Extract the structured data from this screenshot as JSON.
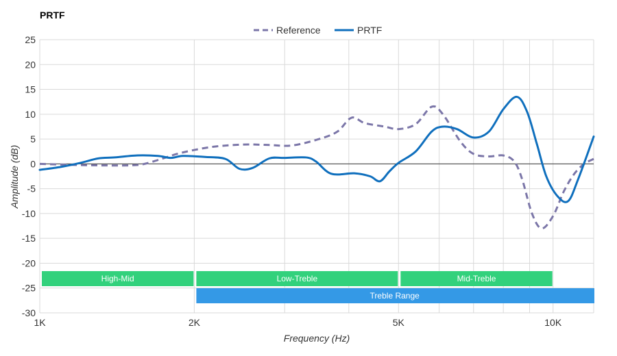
{
  "chart_data": {
    "type": "line",
    "title": "PRTF",
    "xlabel": "Frequency (Hz)",
    "ylabel": "Amplitude (dB)",
    "x_scale": "log",
    "xlim": [
      1000,
      12000
    ],
    "ylim": [
      -30,
      25
    ],
    "y_ticks": [
      25,
      20,
      15,
      10,
      5,
      0,
      -5,
      -10,
      -15,
      -20,
      -25,
      -30
    ],
    "x_tick_labels": [
      {
        "value": 1000,
        "label": "1K"
      },
      {
        "value": 2000,
        "label": "2K"
      },
      {
        "value": 5000,
        "label": "5K"
      },
      {
        "value": 10000,
        "label": "10K"
      }
    ],
    "x_gridlines": [
      1000,
      2000,
      3000,
      4000,
      5000,
      6000,
      7000,
      8000,
      9000,
      10000,
      12000
    ],
    "grid": true,
    "legend_position": "top-center",
    "series": [
      {
        "name": "Reference",
        "color": "#7b76a8",
        "style": "dashed",
        "points": [
          [
            1000,
            0
          ],
          [
            1150,
            -0.2
          ],
          [
            1300,
            -0.3
          ],
          [
            1500,
            -0.3
          ],
          [
            1600,
            0
          ],
          [
            1750,
            1.2
          ],
          [
            1850,
            2.0
          ],
          [
            2000,
            2.8
          ],
          [
            2200,
            3.5
          ],
          [
            2500,
            3.9
          ],
          [
            2800,
            3.8
          ],
          [
            3100,
            3.7
          ],
          [
            3500,
            5.0
          ],
          [
            3800,
            6.5
          ],
          [
            4050,
            9.3
          ],
          [
            4300,
            8.2
          ],
          [
            4700,
            7.5
          ],
          [
            5000,
            7.0
          ],
          [
            5400,
            8.0
          ],
          [
            5800,
            11.5
          ],
          [
            6100,
            10.0
          ],
          [
            6600,
            4.5
          ],
          [
            7000,
            2.0
          ],
          [
            7500,
            1.5
          ],
          [
            8000,
            1.7
          ],
          [
            8400,
            0.5
          ],
          [
            8700,
            -3.0
          ],
          [
            9100,
            -10.0
          ],
          [
            9500,
            -13.0
          ],
          [
            10000,
            -10.5
          ],
          [
            10500,
            -5.5
          ],
          [
            11000,
            -2.0
          ],
          [
            11500,
            0
          ],
          [
            12000,
            1.0
          ]
        ]
      },
      {
        "name": "PRTF",
        "color": "#0f6fbd",
        "style": "solid",
        "points": [
          [
            1000,
            -1.2
          ],
          [
            1100,
            -0.6
          ],
          [
            1200,
            0.2
          ],
          [
            1300,
            1.1
          ],
          [
            1400,
            1.3
          ],
          [
            1550,
            1.7
          ],
          [
            1700,
            1.6
          ],
          [
            1800,
            1.2
          ],
          [
            1900,
            1.6
          ],
          [
            2100,
            1.4
          ],
          [
            2300,
            1.0
          ],
          [
            2450,
            -1.0
          ],
          [
            2600,
            -0.8
          ],
          [
            2800,
            1.1
          ],
          [
            3000,
            1.2
          ],
          [
            3300,
            1.3
          ],
          [
            3450,
            0.5
          ],
          [
            3700,
            -2.0
          ],
          [
            4100,
            -1.9
          ],
          [
            4400,
            -2.5
          ],
          [
            4600,
            -3.5
          ],
          [
            4800,
            -1.5
          ],
          [
            5000,
            0.2
          ],
          [
            5400,
            2.5
          ],
          [
            5800,
            6.5
          ],
          [
            6100,
            7.5
          ],
          [
            6500,
            7.0
          ],
          [
            7000,
            5.3
          ],
          [
            7500,
            6.5
          ],
          [
            8000,
            11.0
          ],
          [
            8500,
            13.5
          ],
          [
            8900,
            10.5
          ],
          [
            9300,
            4.0
          ],
          [
            9700,
            -2.5
          ],
          [
            10200,
            -6.5
          ],
          [
            10700,
            -7.5
          ],
          [
            11200,
            -3.0
          ],
          [
            12000,
            5.5
          ]
        ]
      }
    ],
    "range_bands": [
      {
        "label": "High-Mid",
        "from": 1000,
        "to": 2000,
        "row": 1,
        "color": "#32d17c"
      },
      {
        "label": "Low-Treble",
        "from": 2000,
        "to": 5000,
        "row": 1,
        "color": "#32d17c"
      },
      {
        "label": "Mid-Treble",
        "from": 5000,
        "to": 10000,
        "row": 1,
        "color": "#32d17c"
      },
      {
        "label": "Treble Range",
        "from": 2000,
        "to": 12000,
        "row": 2,
        "color": "#3499e6"
      }
    ]
  }
}
